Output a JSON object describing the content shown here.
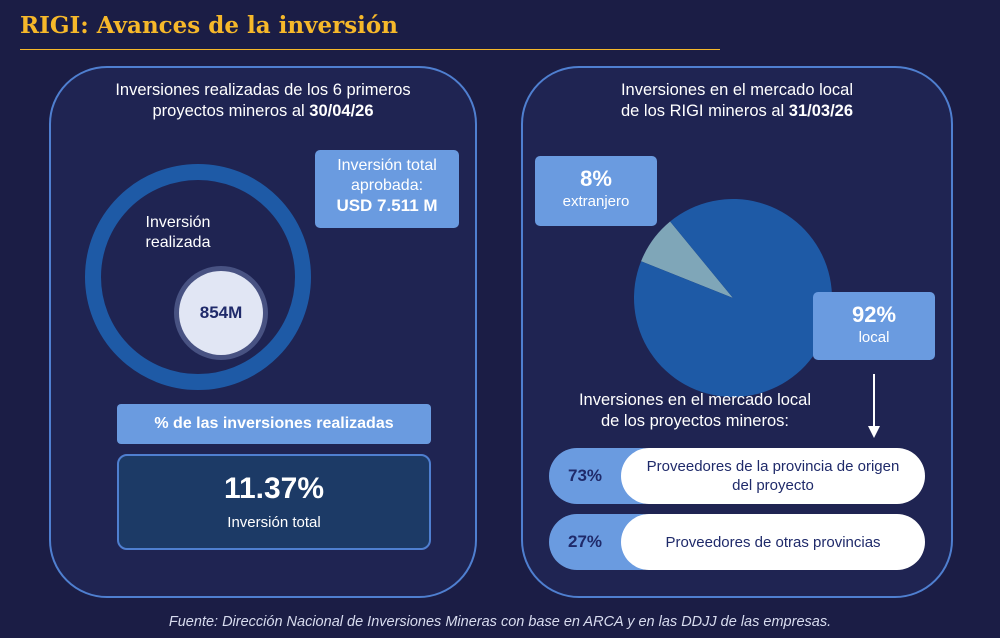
{
  "title": "RIGI: Avances de la inversión",
  "left_panel": {
    "heading_line1": "Inversiones realizadas de los 6 primeros",
    "heading_line2_prefix": "proyectos mineros  al ",
    "heading_date": "30/04/26",
    "donut_label_line1": "Inversión",
    "donut_label_line2": "realizada",
    "realized_amount": "854M",
    "total_label_line1": "Inversión total",
    "total_label_line2": "aprobada:",
    "total_amount": "USD 7.511 M",
    "pct_header": "% de las inversiones realizadas",
    "pct_value": "11.37%",
    "pct_caption": "Inversión total"
  },
  "right_panel": {
    "heading_line1": "Inversiones en el mercado local",
    "heading_line2_prefix": "de los RIGI mineros al ",
    "heading_date": "31/03/26",
    "sub_heading_line1": "Inversiones en el mercado local",
    "sub_heading_line2": "de los proyectos mineros:",
    "suppliers": [
      {
        "pct": "73%",
        "label": "Proveedores de la provincia de origen del proyecto"
      },
      {
        "pct": "27%",
        "label": "Proveedores de otras provincias"
      }
    ]
  },
  "chart_data": {
    "type": "pie",
    "slices": [
      {
        "pct_label": "8%",
        "label": "extranjero",
        "value": 8,
        "color": "#7fa6b8"
      },
      {
        "pct_label": "92%",
        "label": "local",
        "value": 92,
        "color": "#1e5aa6"
      }
    ]
  },
  "source": "Fuente: Dirección Nacional de Inversiones Mineras con base en ARCA y en las DDJJ de las empresas.",
  "colors": {
    "background": "#1b1d45",
    "title": "#f6b82a",
    "accent": "#6a9be0",
    "ring": "#1e5aa6"
  }
}
